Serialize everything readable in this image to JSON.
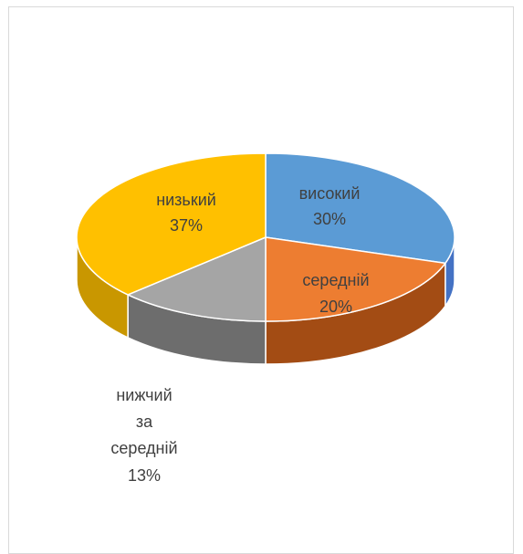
{
  "chart_data": {
    "type": "pie",
    "style": "3d",
    "categories": [
      "високий",
      "середній",
      "нижчий за середній",
      "низький"
    ],
    "values": [
      30,
      20,
      13,
      37
    ],
    "percent_labels": [
      "30%",
      "20%",
      "13%",
      "37%"
    ],
    "slices": [
      {
        "name": "високий",
        "value": 30,
        "label": "високий",
        "pct": "30%",
        "color": "#5b9bd5",
        "side": "#4472c4"
      },
      {
        "name": "середній",
        "value": 20,
        "label": "середній",
        "pct": "20%",
        "color": "#ed7d31",
        "side": "#a34c14"
      },
      {
        "name": "нижчий за середній",
        "value": 13,
        "label_lines": [
          "нижчий",
          "за",
          "середній"
        ],
        "pct": "13%",
        "color": "#a5a5a5",
        "side": "#6d6d6d"
      },
      {
        "name": "низький",
        "value": 37,
        "label": "низький",
        "pct": "37%",
        "color": "#ffc000",
        "side": "#c99700"
      }
    ],
    "title": "",
    "legend": "none"
  }
}
